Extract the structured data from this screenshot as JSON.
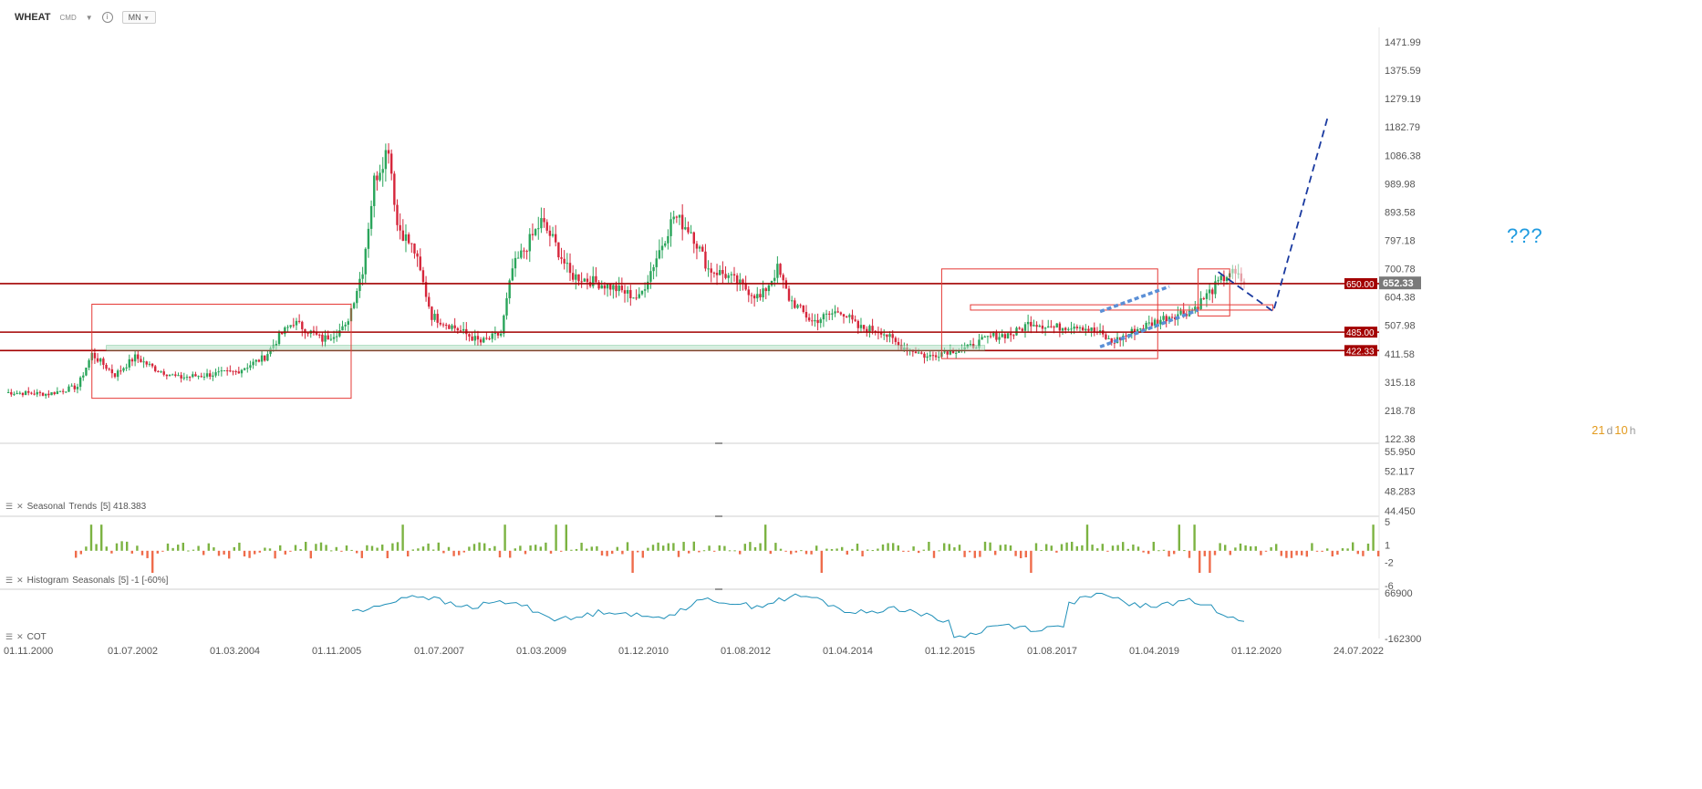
{
  "header": {
    "symbol": "WHEAT",
    "market": "CMD",
    "timeframe": "MN"
  },
  "colors": {
    "bull": "#2aa55b",
    "bear": "#d6263b",
    "bull_light": "#93cfa8",
    "bear_light": "#e5a0a7",
    "support": "#a30000",
    "box": "#e53935",
    "trend_dash": "#1a3aa0",
    "channel": "#5b8fd6",
    "seasonal_line": "#1e8fb8",
    "hist_pos": "#7cb342",
    "hist_neg": "#ef6c4b",
    "highlight": "#b7e1c7"
  },
  "annotations": {
    "question": "???"
  },
  "countdown": {
    "days": "21",
    "days_unit": "d",
    "hours": "10",
    "hours_unit": "h"
  },
  "indicators": {
    "seasonal_trends": {
      "name": "Seasonal",
      "label": "Trends",
      "params": "[5] 418.383"
    },
    "histogram": {
      "name": "Histogram",
      "label": "Seasonals",
      "params": "[5] -1 [-60%]"
    },
    "cot": {
      "name": "COT"
    }
  },
  "chart_data": [
    {
      "type": "candlestick",
      "title": "",
      "price_axis_ticks": [
        "1471.99",
        "1375.59",
        "1279.19",
        "1182.79",
        "1086.38",
        "989.98",
        "893.58",
        "797.18",
        "700.78",
        "604.38",
        "507.98",
        "411.58",
        "315.18",
        "218.78",
        "122.38"
      ],
      "ylim": [
        122.38,
        1471.99
      ],
      "last_price": "652.33",
      "levels": [
        {
          "label": "650.00",
          "value": 650.0
        },
        {
          "label": "485.00",
          "value": 485.0
        },
        {
          "label": "422.33",
          "value": 422.33
        }
      ],
      "x_ticks": [
        "01.11.2000",
        "01.07.2002",
        "01.03.2004",
        "01.11.2005",
        "01.07.2007",
        "01.03.2009",
        "01.12.2010",
        "01.08.2012",
        "01.04.2014",
        "01.12.2015",
        "01.08.2017",
        "01.04.2019",
        "01.12.2020",
        "24.07.2022"
      ],
      "anchor_closes": [
        [
          0,
          280
        ],
        [
          15,
          275
        ],
        [
          25,
          300
        ],
        [
          30,
          410
        ],
        [
          38,
          340
        ],
        [
          45,
          400
        ],
        [
          52,
          360
        ],
        [
          60,
          330
        ],
        [
          70,
          340
        ],
        [
          80,
          350
        ],
        [
          90,
          400
        ],
        [
          95,
          470
        ],
        [
          100,
          520
        ],
        [
          110,
          460
        ],
        [
          118,
          500
        ],
        [
          124,
          700
        ],
        [
          128,
          1000
        ],
        [
          133,
          1120
        ],
        [
          136,
          850
        ],
        [
          142,
          760
        ],
        [
          148,
          540
        ],
        [
          156,
          500
        ],
        [
          165,
          450
        ],
        [
          172,
          480
        ],
        [
          176,
          700
        ],
        [
          186,
          860
        ],
        [
          190,
          800
        ],
        [
          196,
          680
        ],
        [
          210,
          640
        ],
        [
          220,
          600
        ],
        [
          232,
          880
        ],
        [
          238,
          830
        ],
        [
          244,
          700
        ],
        [
          250,
          680
        ],
        [
          256,
          640
        ],
        [
          262,
          600
        ],
        [
          268,
          700
        ],
        [
          272,
          600
        ],
        [
          280,
          520
        ],
        [
          290,
          560
        ],
        [
          296,
          500
        ],
        [
          304,
          490
        ],
        [
          310,
          440
        ],
        [
          316,
          420
        ],
        [
          320,
          400
        ],
        [
          326,
          420
        ],
        [
          334,
          430
        ],
        [
          342,
          470
        ],
        [
          350,
          480
        ],
        [
          356,
          520
        ],
        [
          364,
          500
        ],
        [
          372,
          510
        ],
        [
          380,
          480
        ],
        [
          384,
          450
        ],
        [
          394,
          500
        ],
        [
          404,
          540
        ],
        [
          412,
          560
        ],
        [
          420,
          640
        ],
        [
          425,
          690
        ],
        [
          428,
          670
        ],
        [
          430,
          652
        ]
      ]
    },
    {
      "type": "line",
      "title": "",
      "y_ticks": [
        "55.950",
        "52.117",
        "48.283",
        "44.450"
      ],
      "ylim": [
        44.45,
        55.95
      ]
    },
    {
      "type": "bar",
      "title": "",
      "y_ticks": [
        "5",
        "1",
        "-2",
        "-6"
      ],
      "ylim": [
        -6,
        5
      ]
    },
    {
      "type": "line",
      "title": "",
      "y_ticks": [
        "66900",
        "-162300"
      ],
      "ylim": [
        -162300,
        66900
      ]
    }
  ]
}
